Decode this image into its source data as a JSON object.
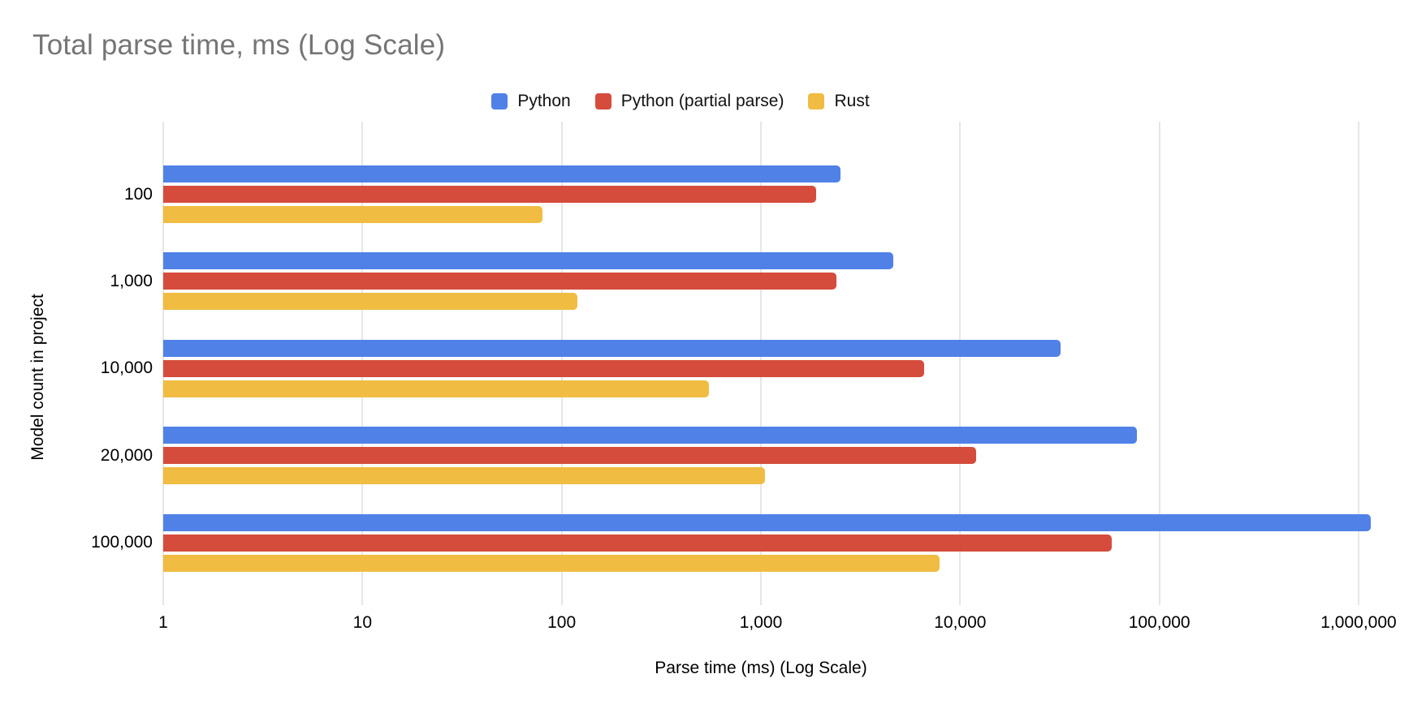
{
  "chart_data": {
    "type": "bar",
    "orientation": "horizontal",
    "title": "Total parse time, ms (Log Scale)",
    "xlabel": "Parse time (ms) (Log Scale)",
    "ylabel": "Model count in project",
    "x_scale": "log",
    "xlim": [
      1,
      1000000
    ],
    "x_ticks": [
      "1",
      "10",
      "100",
      "1,000",
      "10,000",
      "100,000",
      "1,000,000"
    ],
    "grid": true,
    "legend_position": "top",
    "categories": [
      "100",
      "1,000",
      "10,000",
      "20,000",
      "100,000"
    ],
    "series": [
      {
        "name": "Python",
        "color": "#5081e7",
        "values": [
          2500,
          4600,
          32000,
          77000,
          1150000
        ]
      },
      {
        "name": "Python (partial parse)",
        "color": "#d54c3c",
        "values": [
          1900,
          2400,
          6600,
          12000,
          57500
        ]
      },
      {
        "name": "Rust",
        "color": "#f0bc42",
        "values": [
          80,
          120,
          550,
          1050,
          7900
        ]
      }
    ]
  },
  "colors": {
    "title_text": "#757575",
    "axis_text": "#000000",
    "gridline": "#cccccc",
    "background": "#ffffff"
  }
}
